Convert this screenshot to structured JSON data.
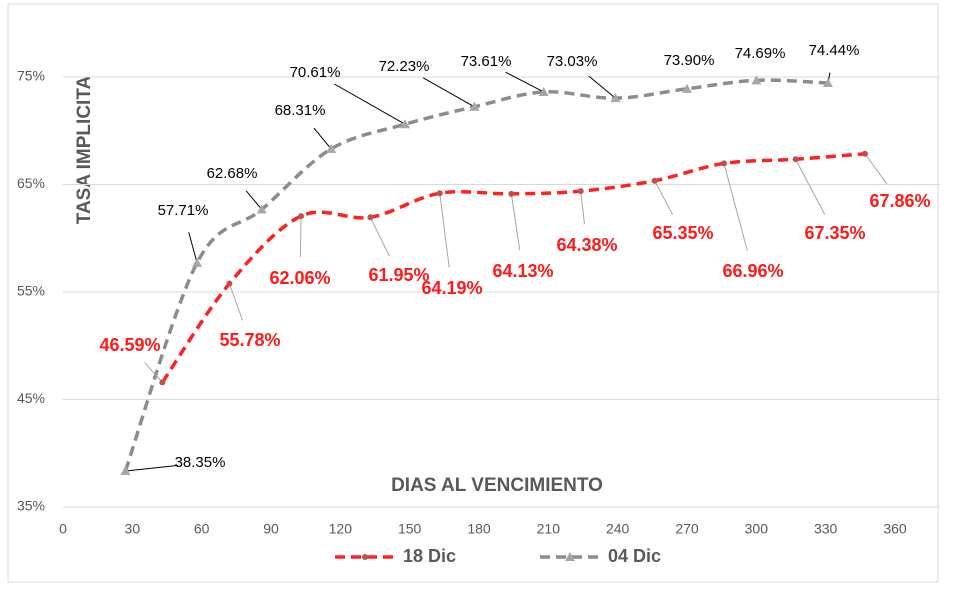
{
  "chart_data": {
    "type": "line",
    "x_label": "DIAS AL VENCIMIENTO",
    "y_label": "TASA IMPLICITA",
    "xlim": [
      0,
      360
    ],
    "xticks": [
      0,
      30,
      60,
      90,
      120,
      150,
      180,
      210,
      240,
      270,
      300,
      330,
      360
    ],
    "ylim": [
      35,
      80
    ],
    "yticks": [
      {
        "value": 35,
        "label": "35%"
      },
      {
        "value": 45,
        "label": "45%"
      },
      {
        "value": 55,
        "label": "55%"
      },
      {
        "value": 65,
        "label": "65%"
      },
      {
        "value": 75,
        "label": "75%"
      }
    ],
    "grid": true,
    "legend": "bottom",
    "series": [
      {
        "name": "18 Dic",
        "color": "#ff2020",
        "marker": "circle",
        "x": [
          43,
          72,
          103,
          133,
          163,
          194,
          224,
          256,
          286,
          317,
          347
        ],
        "values": [
          46.59,
          55.78,
          62.06,
          61.95,
          64.19,
          64.13,
          64.38,
          65.35,
          66.96,
          67.35,
          67.86
        ],
        "value_labels": [
          "46.59%",
          "55.78%",
          "62.06%",
          "61.95%",
          "64.19%",
          "64.13%",
          "64.38%",
          "65.35%",
          "66.96%",
          "67.35%",
          "67.86%"
        ]
      },
      {
        "name": "04 Dic",
        "color": "#8c8c8c",
        "marker": "triangle",
        "x": [
          27,
          58,
          86,
          116,
          148,
          178,
          208,
          239,
          270,
          300,
          331
        ],
        "values": [
          38.35,
          57.71,
          62.68,
          68.31,
          70.61,
          72.23,
          73.61,
          73.03,
          73.9,
          74.69,
          74.44
        ],
        "value_labels": [
          "38.35%",
          "57.71%",
          "62.68%",
          "68.31%",
          "70.61%",
          "72.23%",
          "73.61%",
          "73.03%",
          "73.90%",
          "74.69%",
          "74.44%"
        ]
      }
    ]
  }
}
